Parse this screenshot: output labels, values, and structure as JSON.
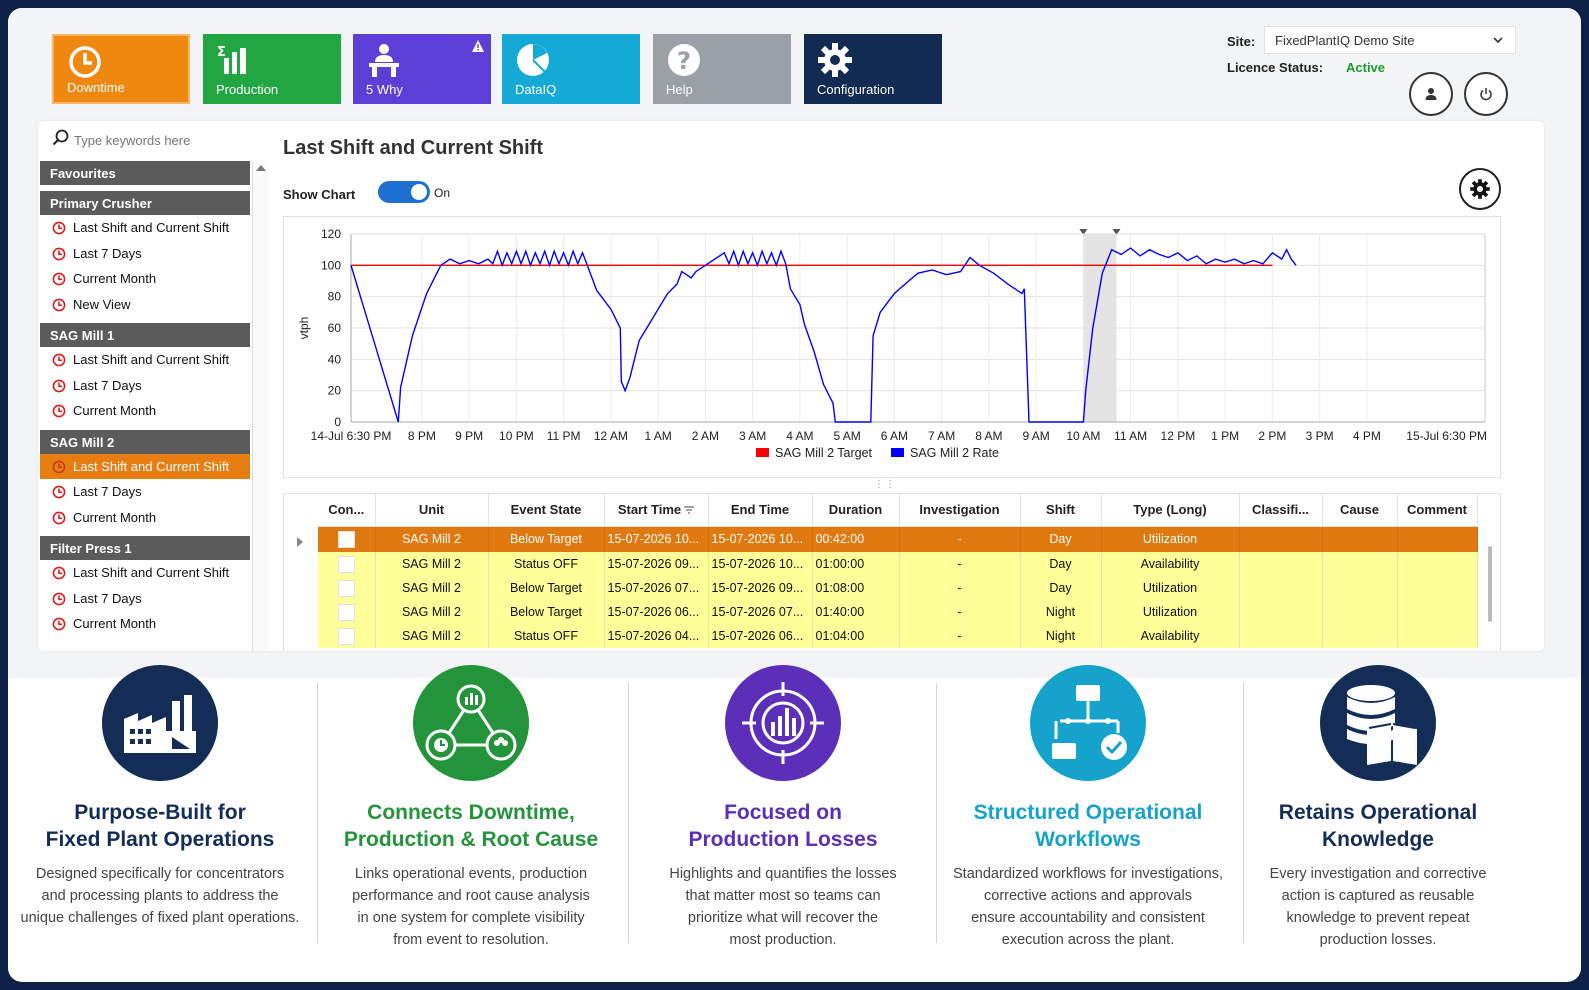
{
  "tiles": [
    {
      "label": "Downtime",
      "icon": "clock-icon",
      "color": "#f0870e"
    },
    {
      "label": "Production",
      "icon": "bar-chart-icon",
      "color": "#22a641"
    },
    {
      "label": "5 Why",
      "icon": "person-at-desk-icon",
      "color": "#5b3fd6"
    },
    {
      "label": "DataIQ",
      "icon": "pie-chart-icon",
      "color": "#15aad6"
    },
    {
      "label": "Help",
      "icon": "question-icon",
      "color": "#9aa0a6"
    },
    {
      "label": "Configuration",
      "icon": "gear-icon",
      "color": "#112b52"
    }
  ],
  "header": {
    "site_label": "Site:",
    "site_value": "FixedPlantIQ Demo Site",
    "licence_label": "Licence Status:",
    "licence_value": "Active"
  },
  "search": {
    "placeholder": "Type keywords here"
  },
  "sidebar": {
    "favourites": "Favourites",
    "groups": [
      {
        "title": "Primary Crusher",
        "items": [
          "Last Shift and Current Shift",
          "Last 7 Days",
          "Current Month",
          "New View"
        ]
      },
      {
        "title": "SAG Mill 1",
        "items": [
          "Last Shift and Current Shift",
          "Last 7 Days",
          "Current Month"
        ]
      },
      {
        "title": "SAG Mill 2",
        "items": [
          "Last Shift and Current Shift",
          "Last 7 Days",
          "Current Month"
        ]
      },
      {
        "title": "Filter Press 1",
        "items": [
          "Last Shift and Current Shift",
          "Last 7 Days",
          "Current Month"
        ]
      }
    ],
    "active": {
      "group": 2,
      "item": 0
    }
  },
  "content": {
    "title": "Last Shift and Current Shift",
    "show_chart_label": "Show Chart",
    "toggle_state": "On"
  },
  "chart_data": {
    "type": "line",
    "ylabel": "vtph",
    "ylim": [
      0,
      120
    ],
    "yticks": [
      0,
      20,
      40,
      60,
      80,
      100,
      120
    ],
    "xlim": [
      0,
      24
    ],
    "x_tick_labels": [
      "14-Jul 6:30 PM",
      "8 PM",
      "9 PM",
      "10 PM",
      "11 PM",
      "12 AM",
      "1 AM",
      "2 AM",
      "3 AM",
      "4 AM",
      "5 AM",
      "6 AM",
      "7 AM",
      "8 AM",
      "9 AM",
      "10 AM",
      "11 AM",
      "12 PM",
      "1 PM",
      "2 PM",
      "3 PM",
      "4 PM",
      "15-Jul 6:30 PM"
    ],
    "x_tick_positions": [
      0,
      1.5,
      2.5,
      3.5,
      4.5,
      5.5,
      6.5,
      7.5,
      8.5,
      9.5,
      10.5,
      11.5,
      12.5,
      13.5,
      14.5,
      15.5,
      16.5,
      17.5,
      18.5,
      19.5,
      20.5,
      21.5,
      24
    ],
    "highlight_range": [
      15.5,
      16.2
    ],
    "legend": "bottom-center",
    "series": [
      {
        "name": "SAG Mill 2 Target",
        "color": "#ff0000",
        "x": [
          0,
          19.5
        ],
        "y": [
          100,
          100
        ]
      },
      {
        "name": "SAG Mill 2 Rate",
        "color": "#0000ff",
        "x": [
          0,
          1.0,
          1.05,
          1.3,
          1.6,
          1.9,
          2.1,
          2.3,
          2.5,
          2.7,
          2.9,
          3.0,
          3.1,
          3.2,
          3.3,
          3.4,
          3.5,
          3.6,
          3.7,
          3.8,
          3.9,
          4.0,
          4.1,
          4.2,
          4.3,
          4.4,
          4.5,
          4.6,
          4.7,
          4.8,
          4.9,
          5.0,
          5.2,
          5.5,
          5.7,
          5.72,
          5.8,
          5.9,
          6.0,
          6.1,
          6.3,
          6.5,
          6.7,
          6.9,
          7.0,
          7.1,
          7.2,
          7.3,
          7.5,
          7.7,
          7.9,
          8.0,
          8.1,
          8.2,
          8.3,
          8.4,
          8.5,
          8.6,
          8.7,
          8.8,
          8.9,
          9.0,
          9.1,
          9.2,
          9.3,
          9.4,
          9.5,
          9.6,
          9.8,
          10.0,
          10.2,
          10.25,
          10.35,
          10.6,
          10.8,
          11.0,
          11.05,
          11.2,
          11.5,
          11.8,
          12.0,
          12.3,
          12.6,
          12.9,
          13.1,
          13.3,
          13.6,
          13.9,
          14.2,
          14.25,
          14.35,
          14.6,
          14.9,
          15.2,
          15.5,
          15.55,
          15.7,
          15.9,
          16.1,
          16.3,
          16.5,
          16.7,
          16.9,
          17.1,
          17.3,
          17.5,
          17.7,
          17.9,
          18.1,
          18.3,
          18.5,
          18.7,
          18.9,
          19.1,
          19.3,
          19.5,
          19.7,
          19.8,
          19.9,
          20.0
        ],
        "y": [
          100,
          0,
          22,
          55,
          82,
          100,
          104,
          101,
          103,
          101,
          104,
          101,
          109,
          100,
          108,
          101,
          109,
          101,
          109,
          100,
          108,
          101,
          109,
          100,
          109,
          101,
          108,
          100,
          109,
          101,
          108,
          100,
          84,
          72,
          60,
          26,
          20,
          28,
          40,
          52,
          62,
          72,
          82,
          88,
          96,
          94,
          92,
          96,
          100,
          104,
          108,
          101,
          109,
          100,
          109,
          101,
          108,
          100,
          109,
          101,
          108,
          100,
          109,
          101,
          85,
          80,
          75,
          62,
          45,
          24,
          12,
          0,
          0,
          0,
          0,
          0,
          55,
          70,
          82,
          90,
          95,
          97,
          94,
          96,
          105,
          100,
          95,
          88,
          82,
          85,
          0,
          0,
          0,
          0,
          0,
          20,
          60,
          95,
          110,
          107,
          111,
          106,
          110,
          107,
          105,
          108,
          103,
          106,
          101,
          104,
          102,
          104,
          101,
          103,
          101,
          108,
          104,
          110,
          104,
          100
        ]
      }
    ]
  },
  "table": {
    "columns": [
      "Con...",
      "Unit",
      "Event State",
      "Start Time",
      "End Time",
      "Duration",
      "Investigation",
      "Shift",
      "Type (Long)",
      "Classifi...",
      "Cause",
      "Comment"
    ],
    "rows": [
      {
        "unit": "SAG Mill 2",
        "state": "Below Target",
        "start": "15-07-2026 10...",
        "end": "15-07-2026 10...",
        "duration": "00:42:00",
        "investigation": "-",
        "shift": "Day",
        "type": "Utilization",
        "classification": "",
        "cause": "",
        "comment": ""
      },
      {
        "unit": "SAG Mill 2",
        "state": "Status OFF",
        "start": "15-07-2026 09...",
        "end": "15-07-2026 10...",
        "duration": "01:00:00",
        "investigation": "-",
        "shift": "Day",
        "type": "Availability",
        "classification": "",
        "cause": "",
        "comment": ""
      },
      {
        "unit": "SAG Mill 2",
        "state": "Below Target",
        "start": "15-07-2026 07...",
        "end": "15-07-2026 09...",
        "duration": "01:08:00",
        "investigation": "-",
        "shift": "Day",
        "type": "Utilization",
        "classification": "",
        "cause": "",
        "comment": ""
      },
      {
        "unit": "SAG Mill 2",
        "state": "Below Target",
        "start": "15-07-2026 06...",
        "end": "15-07-2026 07...",
        "duration": "01:40:00",
        "investigation": "-",
        "shift": "Night",
        "type": "Utilization",
        "classification": "",
        "cause": "",
        "comment": ""
      },
      {
        "unit": "SAG Mill 2",
        "state": "Status OFF",
        "start": "15-07-2026 04...",
        "end": "15-07-2026 06...",
        "duration": "01:04:00",
        "investigation": "-",
        "shift": "Night",
        "type": "Availability",
        "classification": "",
        "cause": "",
        "comment": ""
      }
    ]
  },
  "features": [
    {
      "icon": "factory-icon",
      "color": "#132d57",
      "title_line1": "Purpose-Built for",
      "title_line2": "Fixed Plant Operations",
      "desc": [
        "Designed specifically for concentrators",
        "and processing plants to address the",
        "unique challenges of fixed plant operations."
      ]
    },
    {
      "icon": "connected-nodes-icon",
      "color": "#23943a",
      "title_line1": "Connects Downtime,",
      "title_line2": "Production & Root Cause",
      "desc": [
        "Links operational events, production",
        "performance and root cause analysis",
        "in one system for complete visibility",
        "from event to resolution."
      ]
    },
    {
      "icon": "target-chart-icon",
      "color": "#5b2fb8",
      "title_line1": "Focused on",
      "title_line2": "Production Losses",
      "desc": [
        "Highlights and quantifies the losses",
        "that matter most so teams can",
        "prioritize what will recover the",
        "most production."
      ]
    },
    {
      "icon": "workflow-icon",
      "color": "#15a3cc",
      "title_line1": "Structured Operational",
      "title_line2": "Workflows",
      "desc": [
        "Standardized workflows for investigations,",
        "corrective actions and approvals",
        "ensure accountability and consistent",
        "execution across the plant."
      ]
    },
    {
      "icon": "database-book-icon",
      "color": "#132d57",
      "title_line1": "Retains Operational",
      "title_line2": "Knowledge",
      "desc": [
        "Every investigation and corrective",
        "action is captured as reusable",
        "knowledge to prevent repeat",
        "production losses."
      ]
    }
  ]
}
